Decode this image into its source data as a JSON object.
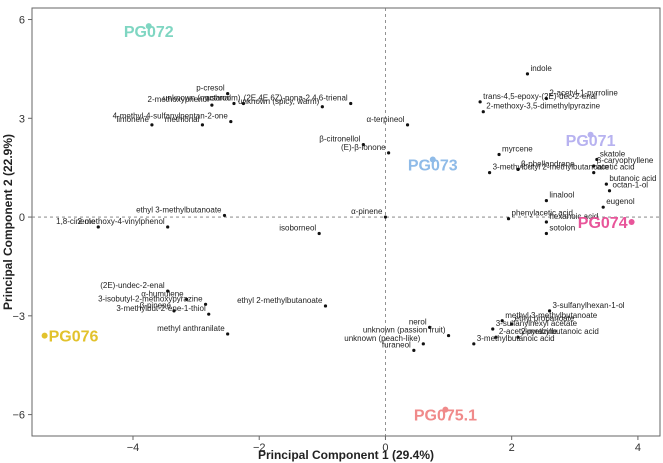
{
  "chart_data": {
    "type": "scatter",
    "xlabel": "Principal Component 1 (29.4%)",
    "ylabel": "Principal Component 2 (22.9%)",
    "xlim": [
      -5.6,
      4.35
    ],
    "ylim": [
      -6.65,
      6.35
    ],
    "xticks": [
      -4,
      -2,
      0,
      2,
      4
    ],
    "yticks": [
      -6,
      -3,
      0,
      3,
      6
    ],
    "grid": false,
    "reference_lines": {
      "x": 0,
      "y": 0
    },
    "groups": [
      {
        "name": "PG072",
        "x": -3.75,
        "y": 5.8,
        "color": "#7fd6c2"
      },
      {
        "name": "PG071",
        "x": 3.25,
        "y": 2.5,
        "color": "#b7b2f0"
      },
      {
        "name": "PG073",
        "x": 0.75,
        "y": 1.75,
        "color": "#8fbbe8"
      },
      {
        "name": "PG074",
        "x": 3.9,
        "y": -0.15,
        "color": "#e8559a"
      },
      {
        "name": "PG076",
        "x": -5.4,
        "y": -3.6,
        "color": "#e2c22c"
      },
      {
        "name": "PG075.1",
        "x": 0.95,
        "y": -5.85,
        "color": "#f08a8a"
      }
    ],
    "points": [
      {
        "label": "indole",
        "x": 2.25,
        "y": 4.35
      },
      {
        "label": "trans-4,5-epoxy-(2E)-dec-2-enal",
        "x": 1.5,
        "y": 3.5
      },
      {
        "label": "2-acetyl-1-pyrroline",
        "x": 2.55,
        "y": 3.6
      },
      {
        "label": "2-methoxy-3,5-dimethylpyrazine",
        "x": 1.55,
        "y": 3.2
      },
      {
        "label": "p-cresol",
        "x": -2.5,
        "y": 3.75
      },
      {
        "label": "unknown (mushroom)",
        "x": -2.25,
        "y": 3.45
      },
      {
        "label": "(2E,4E,6Z)-nona-2,4,6-trienal",
        "x": -0.55,
        "y": 3.45
      },
      {
        "label": "2-methoxyphenol",
        "x": -2.75,
        "y": 3.4
      },
      {
        "label": "octanal",
        "x": -2.4,
        "y": 3.45
      },
      {
        "label": "unknown (spicy, warm)",
        "x": -1.0,
        "y": 3.35
      },
      {
        "label": "limonene",
        "x": -3.7,
        "y": 2.8
      },
      {
        "label": "methional",
        "x": -2.9,
        "y": 2.8
      },
      {
        "label": "4-methyl-4-sulfanylpentan-2-one",
        "x": -2.45,
        "y": 2.9
      },
      {
        "label": "α-terpineol",
        "x": 0.35,
        "y": 2.8
      },
      {
        "label": "β-citronellol",
        "x": -0.35,
        "y": 2.2
      },
      {
        "label": "(E)-β-ionone",
        "x": 0.05,
        "y": 1.95
      },
      {
        "label": "myrcene",
        "x": 1.8,
        "y": 1.9
      },
      {
        "label": "3-methylbutyl 2-methylbutanoate",
        "x": 1.65,
        "y": 1.35
      },
      {
        "label": "skatole",
        "x": 3.35,
        "y": 1.75
      },
      {
        "label": "β-caryophyllene",
        "x": 3.3,
        "y": 1.55
      },
      {
        "label": "β-phellandrene",
        "x": 2.1,
        "y": 1.45
      },
      {
        "label": "acetic acid",
        "x": 3.3,
        "y": 1.35
      },
      {
        "label": "butanoic acid",
        "x": 3.5,
        "y": 1.0
      },
      {
        "label": "octan-1-ol",
        "x": 3.55,
        "y": 0.8
      },
      {
        "label": "eugenol",
        "x": 3.45,
        "y": 0.3
      },
      {
        "label": "linalool",
        "x": 2.55,
        "y": 0.5
      },
      {
        "label": "phenylacetic acid",
        "x": 1.95,
        "y": -0.05
      },
      {
        "label": "hexanoic acid",
        "x": 2.55,
        "y": -0.15
      },
      {
        "label": "sotolon",
        "x": 2.55,
        "y": -0.5
      },
      {
        "label": "ethyl 3-methylbutanoate",
        "x": -2.55,
        "y": 0.05
      },
      {
        "label": "α-pinene",
        "x": 0.0,
        "y": 0.0
      },
      {
        "label": "1,8-cineole",
        "x": -4.55,
        "y": -0.3
      },
      {
        "label": "2-methoxy-4-vinylphenol",
        "x": -3.45,
        "y": -0.3
      },
      {
        "label": "isoborneol",
        "x": -1.05,
        "y": -0.5
      },
      {
        "label": "(2E)-undec-2-enal",
        "x": -3.45,
        "y": -2.25
      },
      {
        "label": "α-humulene",
        "x": -3.15,
        "y": -2.5
      },
      {
        "label": "β-pinene",
        "x": -3.35,
        "y": -2.85
      },
      {
        "label": "3-isobutyl-2-methoxypyrazine",
        "x": -2.85,
        "y": -2.65
      },
      {
        "label": "3-methylbut-2-ene-1-thiol",
        "x": -2.8,
        "y": -2.95
      },
      {
        "label": "methyl anthranilate",
        "x": -2.5,
        "y": -3.55
      },
      {
        "label": "ethyl 2-methylbutanoate",
        "x": -0.95,
        "y": -2.7
      },
      {
        "label": "3-sulfanylhexan-1-ol",
        "x": 2.6,
        "y": -2.85
      },
      {
        "label": "methyl 3-methylbutanoate",
        "x": 1.85,
        "y": -3.15
      },
      {
        "label": "ethyl propanoate",
        "x": 2.0,
        "y": -3.25
      },
      {
        "label": "nerol",
        "x": 0.7,
        "y": -3.35
      },
      {
        "label": "3-sulfanylhexyl acetate",
        "x": 1.7,
        "y": -3.4
      },
      {
        "label": "unknown (passion fruit)",
        "x": 1.0,
        "y": -3.6
      },
      {
        "label": "2-acetylpyrazine",
        "x": 1.75,
        "y": -3.65
      },
      {
        "label": "2-methylbutanoic acid",
        "x": 2.1,
        "y": -3.65
      },
      {
        "label": "unknown (peach-like)",
        "x": 0.6,
        "y": -3.85
      },
      {
        "label": "3-methylbutanoic acid",
        "x": 1.4,
        "y": -3.85
      },
      {
        "label": "furaneol",
        "x": 0.45,
        "y": -4.05
      }
    ]
  }
}
